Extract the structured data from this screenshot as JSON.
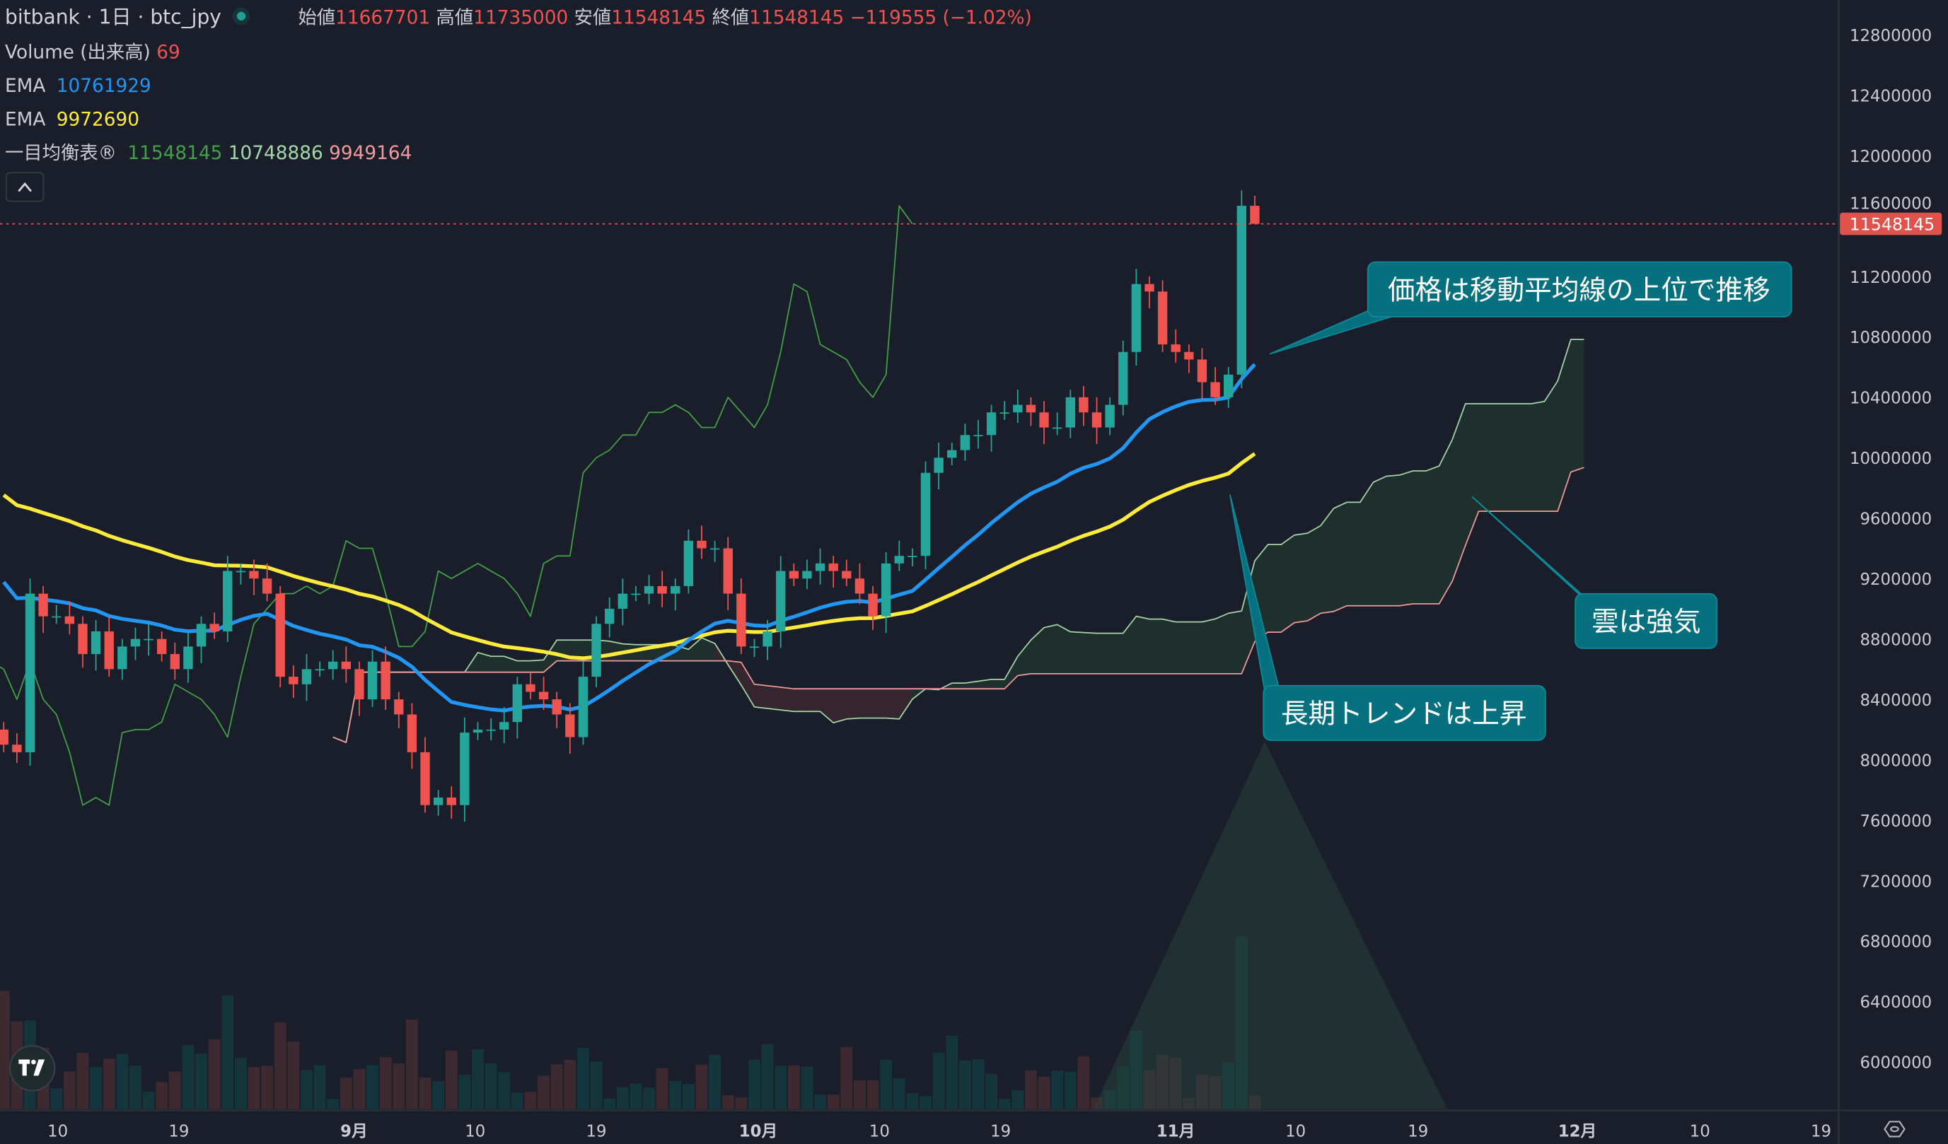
{
  "header": {
    "title": "bitbank · 1日 · btc_jpy",
    "open_label": "始値",
    "open": "11667701",
    "high_label": "高値",
    "high": "11735000",
    "low_label": "安値",
    "low": "11548145",
    "close_label": "終値",
    "close": "11548145",
    "change": "−119555 (−1.02%)"
  },
  "indicators": {
    "volume": {
      "label": "Volume (出来高)",
      "value": "69"
    },
    "ema_fast": {
      "label": "EMA",
      "value": "10761929"
    },
    "ema_slow": {
      "label": "EMA",
      "value": "9972690"
    },
    "ichimoku": {
      "label": "一目均衡表®",
      "lagging": "11548145",
      "span_a": "10748886",
      "span_b": "9949164"
    },
    "collapse_icon": "chevron-up-icon"
  },
  "price_tag": "11548145",
  "annotations": {
    "price_above_ma": "価格は移動平均線の上位で推移",
    "cloud_bullish": "雲は強気",
    "long_term_up": "長期トレンドは上昇"
  },
  "colors": {
    "background": "#1a1e2b",
    "up": "#26a69a",
    "down": "#ef5350",
    "ema_fast": "#2196f3",
    "ema_slow": "#ffeb3b",
    "lagging": "#43a047",
    "span_a": "#a5d6a7",
    "span_b": "#f19a9a",
    "callout": "#07707f",
    "volume_up": "#14353c",
    "volume_down": "#3d2930"
  },
  "chart_data": {
    "type": "candlestick",
    "y_ticks": [
      12800000,
      12400000,
      12000000,
      11600000,
      11200000,
      10800000,
      10400000,
      10000000,
      9600000,
      9200000,
      8800000,
      8400000,
      8000000,
      7600000,
      7200000,
      6800000,
      6400000,
      6000000
    ],
    "x_ticks": [
      {
        "label": "10",
        "bar": 4.1
      },
      {
        "label": "19",
        "bar": 13.3
      },
      {
        "label": "9月",
        "bar": 26.6,
        "bold": true
      },
      {
        "label": "10",
        "bar": 35.8
      },
      {
        "label": "19",
        "bar": 45
      },
      {
        "label": "10月",
        "bar": 57.3,
        "bold": true
      },
      {
        "label": "10",
        "bar": 66.5
      },
      {
        "label": "19",
        "bar": 75.7
      },
      {
        "label": "11月",
        "bar": 89,
        "bold": true
      },
      {
        "label": "10",
        "bar": 98.1
      },
      {
        "label": "19",
        "bar": 107.4
      },
      {
        "label": "12月",
        "bar": 119.5,
        "bold": true
      },
      {
        "label": "10",
        "bar": 128.8
      },
      {
        "label": "19",
        "bar": 138
      }
    ],
    "first_open": 8200000,
    "closes": [
      8100000,
      8050000,
      9100000,
      8950000,
      8950000,
      8900000,
      8700000,
      8850000,
      8600000,
      8750000,
      8800000,
      8800000,
      8700000,
      8600000,
      8750000,
      8900000,
      8850000,
      9250000,
      9250000,
      9200000,
      9100000,
      8550000,
      8500000,
      8600000,
      8600000,
      8650000,
      8600000,
      8400000,
      8650000,
      8400000,
      8300000,
      8050000,
      7700000,
      7750000,
      7700000,
      8180000,
      8200000,
      8200000,
      8250000,
      8500000,
      8450000,
      8400000,
      8300000,
      8150000,
      8550000,
      8900000,
      9000000,
      9100000,
      9100000,
      9150000,
      9100000,
      9150000,
      9450000,
      9400000,
      9400000,
      9100000,
      8750000,
      8750000,
      8850000,
      9250000,
      9200000,
      9250000,
      9300000,
      9250000,
      9200000,
      9100000,
      8950000,
      9300000,
      9350000,
      9350000,
      9900000,
      10000000,
      10050000,
      10150000,
      10150000,
      10300000,
      10300000,
      10350000,
      10300000,
      10200000,
      10200000,
      10400000,
      10300000,
      10200000,
      10350000,
      10700000,
      11150000,
      11100000,
      10750000,
      10700000,
      10650000,
      10500000,
      10400000,
      10550000,
      11667701,
      11548145
    ],
    "volumes": [
      600,
      446,
      451,
      312,
      106,
      192,
      286,
      214,
      257,
      281,
      221,
      88,
      138,
      192,
      325,
      282,
      354,
      577,
      260,
      214,
      221,
      440,
      343,
      199,
      224,
      52,
      160,
      203,
      224,
      264,
      232,
      455,
      160,
      142,
      296,
      174,
      304,
      232,
      188,
      84,
      88,
      170,
      228,
      250,
      311,
      242,
      55,
      112,
      130,
      110,
      208,
      143,
      128,
      226,
      276,
      71,
      60,
      251,
      330,
      222,
      222,
      215,
      74,
      74,
      316,
      146,
      146,
      251,
      157,
      82,
      67,
      287,
      373,
      247,
      254,
      179,
      53,
      96,
      197,
      164,
      197,
      190,
      269,
      60,
      96,
      218,
      401,
      197,
      276,
      262,
      56,
      175,
      168,
      236,
      877,
      69
    ],
    "ema_fast": {
      "length": 20,
      "start": 9290000
    },
    "ema_slow": {
      "length": 50,
      "start": 9820000
    },
    "ichimoku": {
      "conversion": 9,
      "base": 26,
      "span_b": 52,
      "displacement": 26
    }
  }
}
